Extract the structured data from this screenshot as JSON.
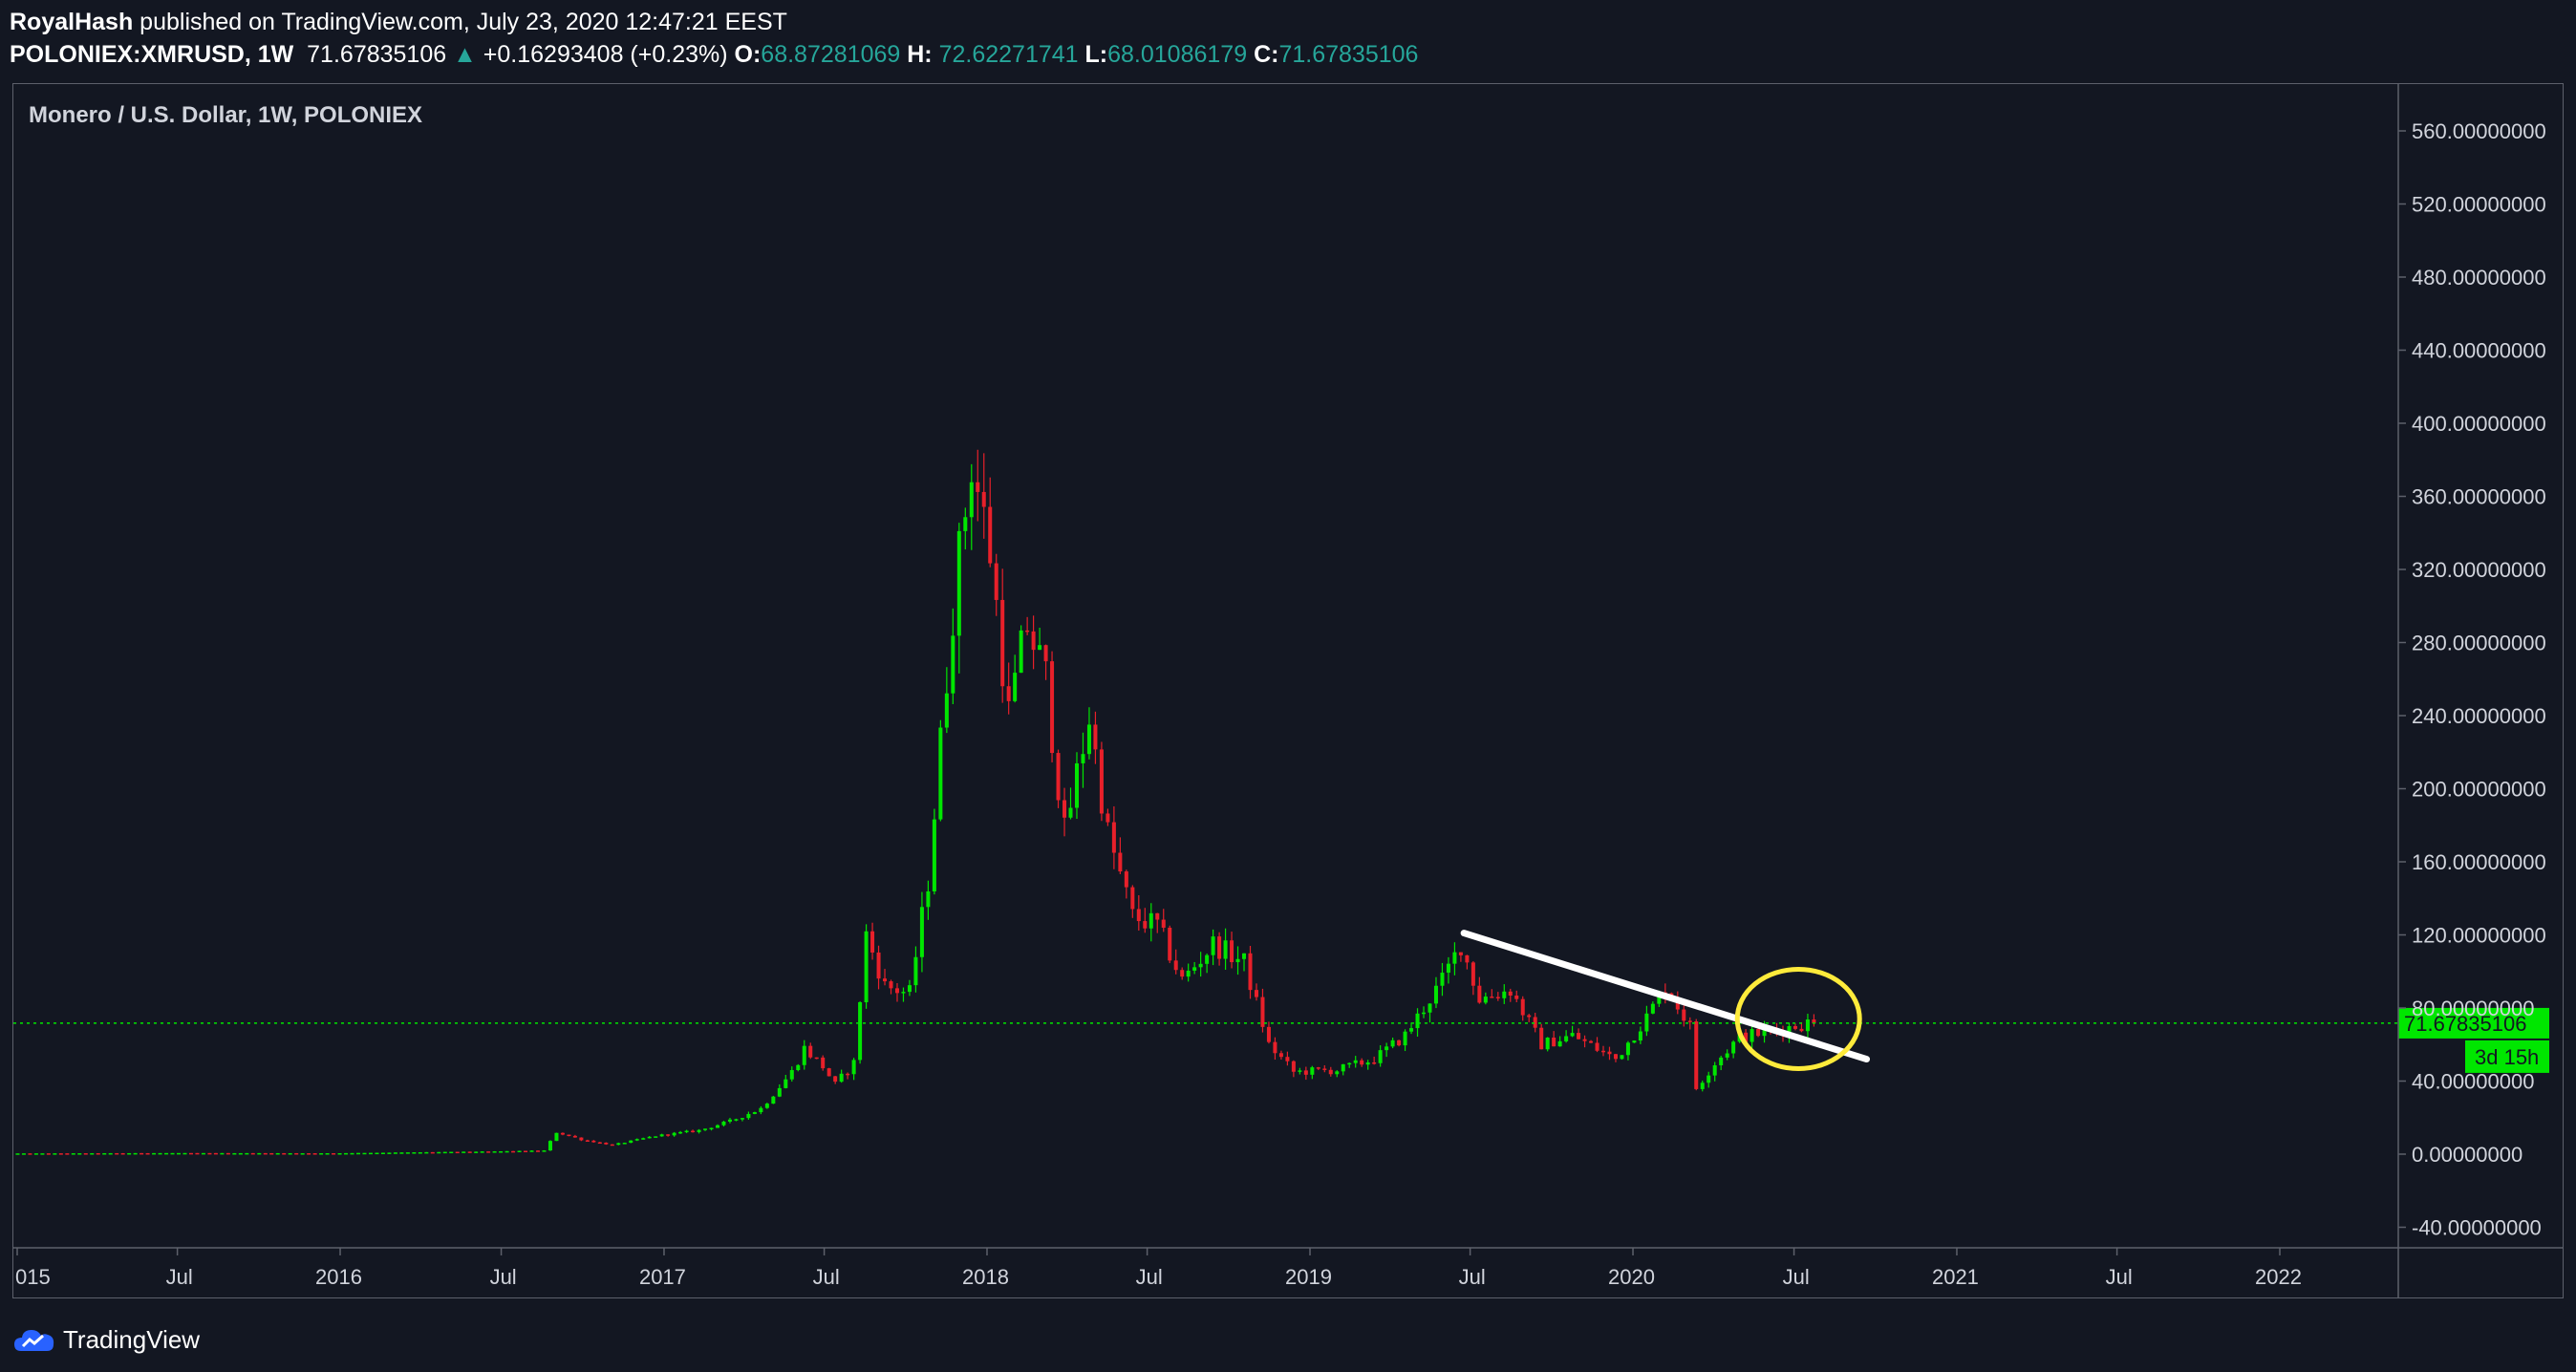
{
  "header": {
    "author": "RoyalHash",
    "published_text": "published on TradingView.com, July 23, 2020 12:47:21 EEST",
    "symbol": "POLONIEX:XMRUSD, 1W",
    "last_price": "71.67835106",
    "change_arrow": "▲",
    "change": "+0.16293408 (+0.23%)",
    "o_label": "O:",
    "o_value": "68.87281069",
    "h_label": "H:",
    "h_value": "72.62271741",
    "l_label": "L:",
    "l_value": "68.01086179",
    "c_label": "C:",
    "c_value": "71.67835106"
  },
  "footer": {
    "brand": "TradingView"
  },
  "chart_data": {
    "type": "candlestick",
    "title": "Monero / U.S. Dollar, 1W, POLONIEX",
    "ylim": [
      -60,
      580
    ],
    "y_ticks": [
      -40,
      0,
      40,
      80,
      120,
      160,
      200,
      240,
      280,
      320,
      360,
      400,
      440,
      480,
      520,
      560
    ],
    "y_tick_labels": [
      "-40.00000000",
      "0.00000000",
      "40.00000000",
      "80.00000000",
      "120.00000000",
      "160.00000000",
      "200.00000000",
      "240.00000000",
      "280.00000000",
      "320.00000000",
      "360.00000000",
      "400.00000000",
      "440.00000000",
      "480.00000000",
      "520.00000000",
      "560.00000000"
    ],
    "x_ticks": [
      {
        "date": "2015-01-01",
        "label": "015"
      },
      {
        "date": "2015-07-01",
        "label": "Jul"
      },
      {
        "date": "2016-01-01",
        "label": "2016"
      },
      {
        "date": "2016-07-01",
        "label": "Jul"
      },
      {
        "date": "2017-01-01",
        "label": "2017"
      },
      {
        "date": "2017-07-01",
        "label": "Jul"
      },
      {
        "date": "2018-01-01",
        "label": "2018"
      },
      {
        "date": "2018-07-01",
        "label": "Jul"
      },
      {
        "date": "2019-01-01",
        "label": "2019"
      },
      {
        "date": "2019-07-01",
        "label": "Jul"
      },
      {
        "date": "2020-01-01",
        "label": "2020"
      },
      {
        "date": "2020-07-01",
        "label": "Jul"
      },
      {
        "date": "2021-01-01",
        "label": "2021"
      },
      {
        "date": "2021-07-01",
        "label": "Jul"
      },
      {
        "date": "2022-01-01",
        "label": "2022"
      }
    ],
    "price_path": [
      [
        "2014-12-29",
        0.4
      ],
      [
        "2015-06-29",
        0.6
      ],
      [
        "2015-12-28",
        0.5
      ],
      [
        "2016-06-27",
        1.5
      ],
      [
        "2016-08-22",
        2.0
      ],
      [
        "2016-09-05",
        12
      ],
      [
        "2016-10-03",
        8
      ],
      [
        "2016-11-07",
        5
      ],
      [
        "2016-12-26",
        10
      ],
      [
        "2017-02-13",
        13
      ],
      [
        "2017-03-20",
        18
      ],
      [
        "2017-04-24",
        25
      ],
      [
        "2017-05-29",
        45
      ],
      [
        "2017-06-12",
        58
      ],
      [
        "2017-07-03",
        48
      ],
      [
        "2017-07-17",
        38
      ],
      [
        "2017-08-07",
        50
      ],
      [
        "2017-08-21",
        120
      ],
      [
        "2017-09-11",
        92
      ],
      [
        "2017-10-09",
        88
      ],
      [
        "2017-10-30",
        150
      ],
      [
        "2017-11-27",
        300
      ],
      [
        "2017-12-18",
        380
      ],
      [
        "2018-01-08",
        330
      ],
      [
        "2018-01-29",
        240
      ],
      [
        "2018-02-19",
        290
      ],
      [
        "2018-03-12",
        260
      ],
      [
        "2018-04-02",
        175
      ],
      [
        "2018-04-30",
        240
      ],
      [
        "2018-05-21",
        175
      ],
      [
        "2018-06-18",
        130
      ],
      [
        "2018-07-16",
        125
      ],
      [
        "2018-08-13",
        95
      ],
      [
        "2018-09-17",
        115
      ],
      [
        "2018-10-22",
        105
      ],
      [
        "2018-11-19",
        60
      ],
      [
        "2018-12-17",
        45
      ],
      [
        "2019-02-04",
        46
      ],
      [
        "2019-03-18",
        52
      ],
      [
        "2019-04-22",
        65
      ],
      [
        "2019-06-03",
        95
      ],
      [
        "2019-06-24",
        115
      ],
      [
        "2019-07-15",
        85
      ],
      [
        "2019-08-19",
        90
      ],
      [
        "2019-09-23",
        60
      ],
      [
        "2019-10-28",
        65
      ],
      [
        "2019-12-16",
        52
      ],
      [
        "2020-01-20",
        75
      ],
      [
        "2020-02-10",
        92
      ],
      [
        "2020-03-09",
        70
      ],
      [
        "2020-03-16",
        36
      ],
      [
        "2020-04-06",
        50
      ],
      [
        "2020-05-04",
        64
      ],
      [
        "2020-06-15",
        68
      ],
      [
        "2020-07-20",
        71.68
      ]
    ],
    "last_price": 71.67835106,
    "last_price_label": "71.67835106",
    "countdown_label": "3d 15h",
    "trendline": [
      [
        "2019-06-24",
        121
      ],
      [
        "2020-09-21",
        52
      ]
    ],
    "highlight_circle": {
      "center": [
        "2020-07-06",
        74
      ],
      "note": "yellow ellipse highlighting breakout"
    },
    "grid": false
  }
}
